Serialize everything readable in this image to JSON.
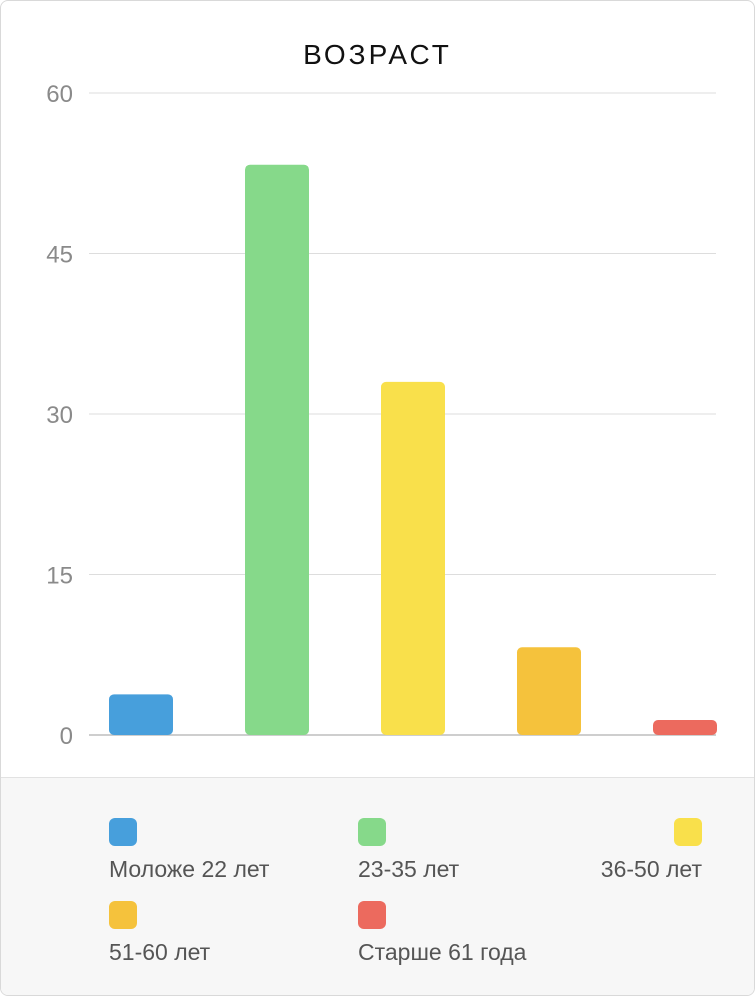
{
  "chart_data": {
    "type": "bar",
    "title": "ВОЗРАСТ",
    "categories": [
      "Моложе 22 лет",
      "23-35 лет",
      "36-50 лет",
      "51-60 лет",
      "Старше 61 года"
    ],
    "values": [
      3.8,
      53.3,
      33.0,
      8.2,
      1.4
    ],
    "colors": [
      "#479fdc",
      "#86d98a",
      "#f9e04b",
      "#f5c23c",
      "#ec6a5e"
    ],
    "ylim": [
      0,
      60
    ],
    "yticks": [
      "0",
      "15",
      "30",
      "45",
      "60"
    ],
    "grid": true,
    "legend_position": "bottom"
  }
}
